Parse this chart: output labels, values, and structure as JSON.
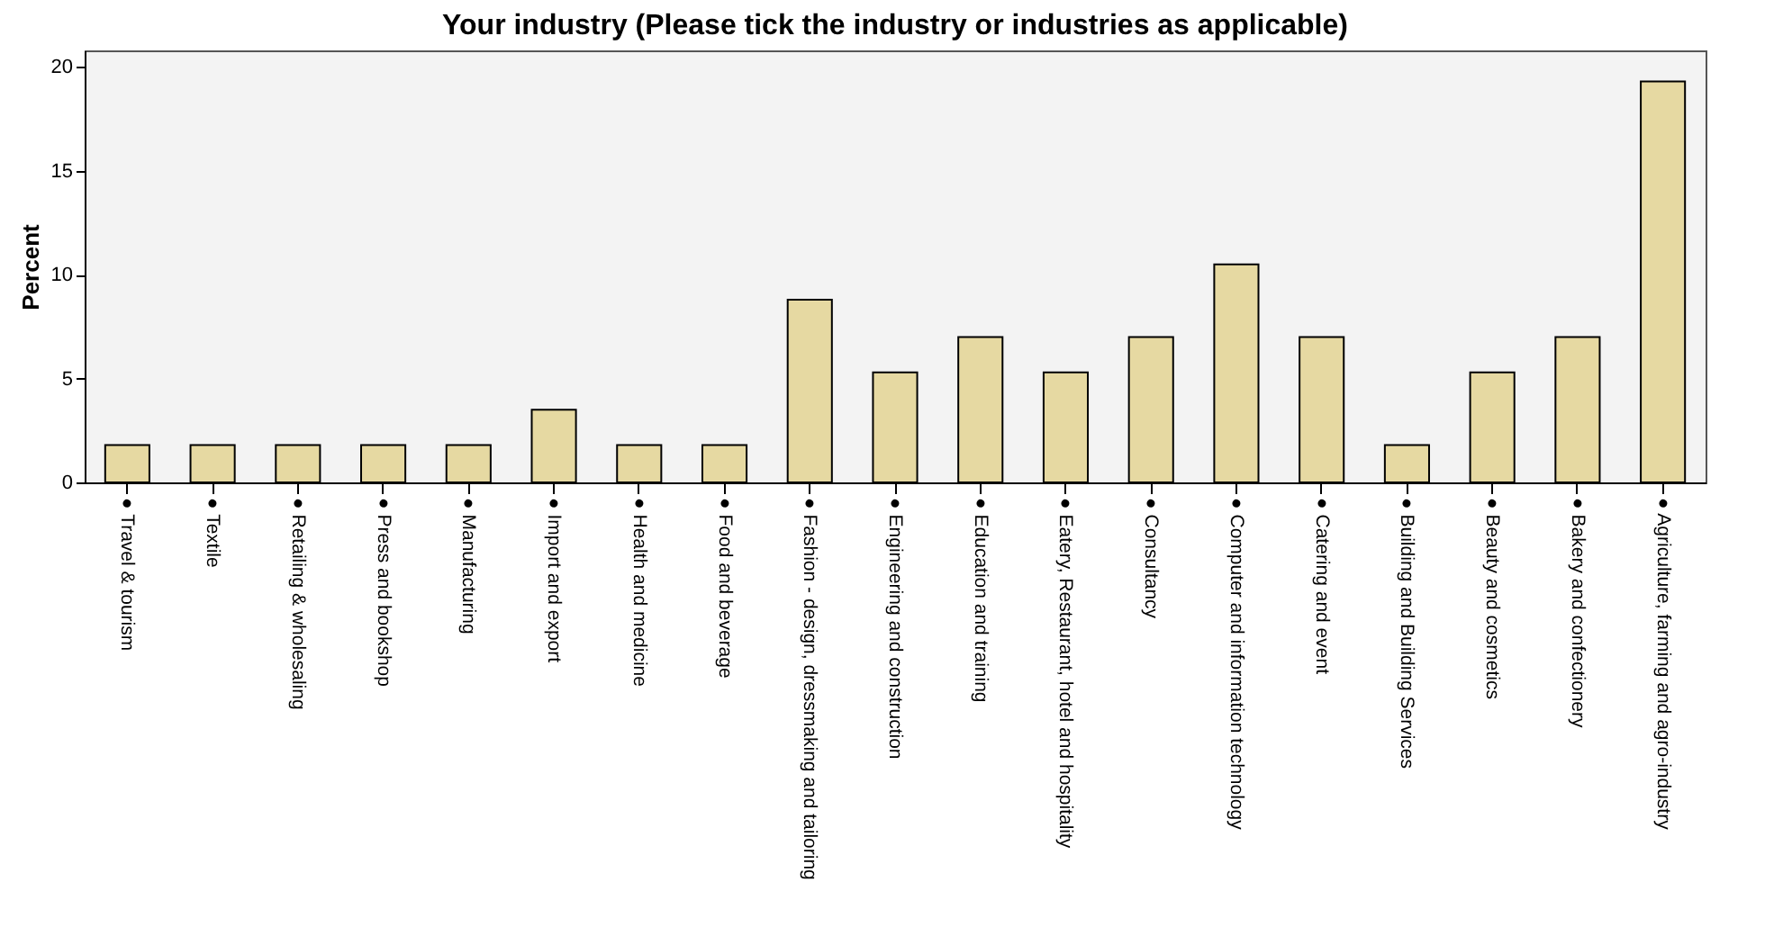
{
  "chart_data": {
    "type": "bar",
    "title": "Your industry (Please tick the industry or industries as applicable)",
    "ylabel": "Percent",
    "categories": [
      "● Travel & tourism",
      "● Textile",
      "● Retailing & wholesaling",
      "● Press and bookshop",
      "● Manufacturing",
      "● Import and export",
      "● Health and medicine",
      "● Food and beverage",
      "● Fashion - design, dressmaking and tailoring",
      "● Engineering and construction",
      "● Education and training",
      "● Eatery, Restaurant, hotel and hospitality",
      "● Consultancy",
      "● Computer and information technology",
      "● Catering and event",
      "● Building and Building Services",
      "● Beauty and cosmetics",
      "● Bakery and confectionery",
      "● Agriculture, farming and agro-industry"
    ],
    "values": [
      1.8,
      1.8,
      1.8,
      1.8,
      1.8,
      3.5,
      1.8,
      1.8,
      8.8,
      5.3,
      7.0,
      5.3,
      7.0,
      10.5,
      7.0,
      1.8,
      5.3,
      7.0,
      19.3
    ],
    "color": "#e6d9a2",
    "ylim": [
      0,
      20.8
    ],
    "yticks": [
      0,
      5,
      10,
      15,
      20
    ],
    "grid": false
  }
}
